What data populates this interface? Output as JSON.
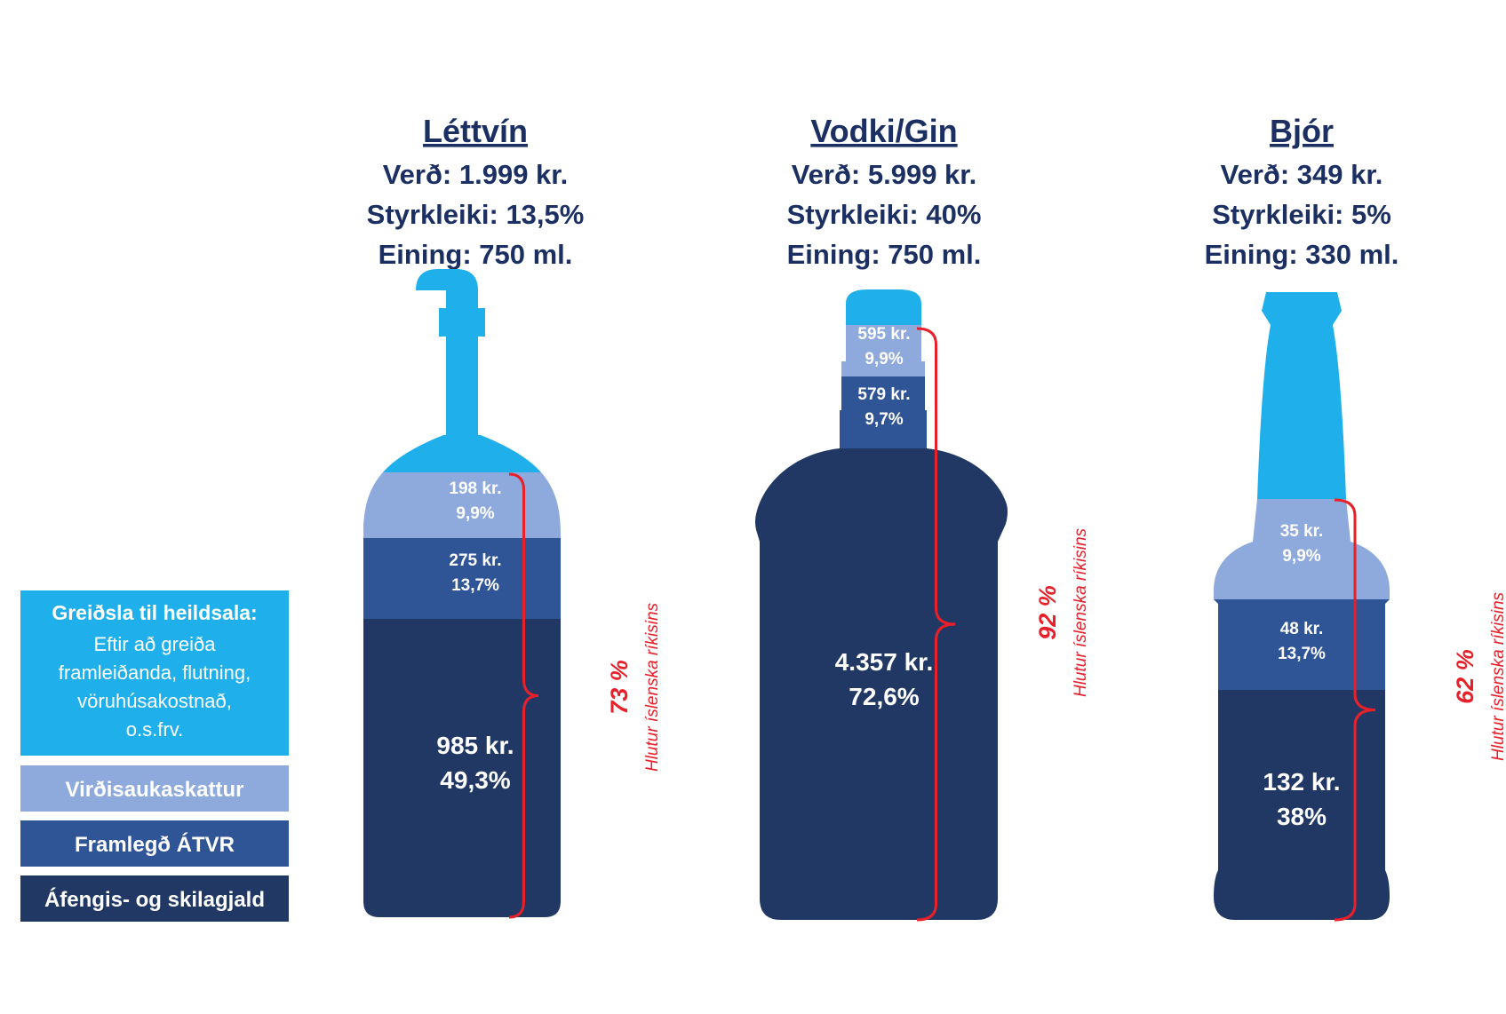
{
  "colors": {
    "heildsala": "#1fb0ec",
    "vsk": "#8ea9dc",
    "atvr": "#2f5597",
    "gjald": "#213864",
    "bracket": "#e8202a",
    "header": "#1b2f63"
  },
  "legend": [
    {
      "key": "heildsala",
      "title": "Greiðsla til heildsala:",
      "lines": [
        "Eftir að greiða",
        "framleiðanda, flutning,",
        "vöruhúsakostnað,",
        "o.s.frv."
      ]
    },
    {
      "key": "vsk",
      "title": "Virðisaukaskattur",
      "lines": []
    },
    {
      "key": "atvr",
      "title": "Framlegð ÁTVR",
      "lines": []
    },
    {
      "key": "gjald",
      "title": "Áfengis- og skilagjald",
      "lines": []
    }
  ],
  "chart_data": {
    "type": "bar",
    "stacked": true,
    "categories": [
      "Léttvín",
      "Vodki/Gin",
      "Bjór"
    ],
    "products": [
      {
        "name": "Léttvín",
        "price": "Verð: 1.999 kr.",
        "strength": "Styrkleiki: 13,5%",
        "unit": "Eining: 750 ml.",
        "segments": [
          {
            "key": "gjald",
            "amount": "985 kr.",
            "pct": "49,3%",
            "value": 49.3
          },
          {
            "key": "atvr",
            "amount": "275 kr.",
            "pct": "13,7%",
            "value": 13.7
          },
          {
            "key": "vsk",
            "amount": "198 kr.",
            "pct": "9,9%",
            "value": 9.9
          },
          {
            "key": "heildsala",
            "amount": "",
            "pct": "",
            "value": 27.1
          }
        ],
        "state_share": "73 %",
        "state_share_label": "Hlutur íslenska ríkisins"
      },
      {
        "name": "Vodki/Gin",
        "price": "Verð: 5.999 kr.",
        "strength": "Styrkleiki: 40%",
        "unit": "Eining: 750 ml.",
        "segments": [
          {
            "key": "gjald",
            "amount": "4.357 kr.",
            "pct": "72,6%",
            "value": 72.6
          },
          {
            "key": "atvr",
            "amount": "579 kr.",
            "pct": "9,7%",
            "value": 9.7
          },
          {
            "key": "vsk",
            "amount": "595 kr.",
            "pct": "9,9%",
            "value": 9.9
          },
          {
            "key": "heildsala",
            "amount": "",
            "pct": "",
            "value": 7.8
          }
        ],
        "state_share": "92 %",
        "state_share_label": "Hlutur íslenska ríkisins"
      },
      {
        "name": "Bjór",
        "price": "Verð: 349 kr.",
        "strength": "Styrkleiki: 5%",
        "unit": "Eining: 330 ml.",
        "segments": [
          {
            "key": "gjald",
            "amount": "132 kr.",
            "pct": "38%",
            "value": 38
          },
          {
            "key": "atvr",
            "amount": "48 kr.",
            "pct": "13,7%",
            "value": 13.7
          },
          {
            "key": "vsk",
            "amount": "35 kr.",
            "pct": "9,9%",
            "value": 9.9
          },
          {
            "key": "heildsala",
            "amount": "",
            "pct": "",
            "value": 38.4
          }
        ],
        "state_share": "62 %",
        "state_share_label": "Hlutur íslenska ríkisins"
      }
    ]
  }
}
